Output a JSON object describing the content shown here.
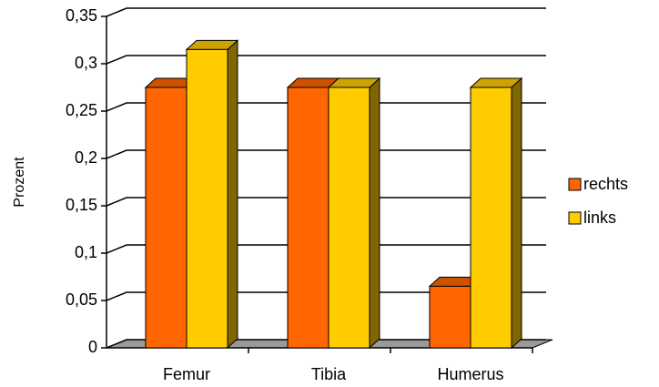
{
  "chart_data": {
    "type": "bar3d",
    "y_label": "Prozent",
    "categories": [
      "Femur",
      "Tibia",
      "Humerus"
    ],
    "series": [
      {
        "name": "rechts",
        "color": "#ff6600",
        "values": [
          0.275,
          0.275,
          0.065
        ]
      },
      {
        "name": "links",
        "color": "#ffcc00",
        "values": [
          0.315,
          0.275,
          0.275
        ]
      }
    ],
    "ylim": [
      0,
      0.35
    ],
    "yticks": [
      0,
      {
        "value": 0.05,
        "label": "0,05"
      },
      {
        "value": 0.1,
        "label": "0,1"
      },
      {
        "value": 0.15,
        "label": "0,15"
      },
      {
        "value": 0.2,
        "label": "0,2"
      },
      {
        "value": 0.25,
        "label": "0,25"
      },
      {
        "value": 0.3,
        "label": "0,3"
      },
      {
        "value": 0.35,
        "label": "0,35"
      }
    ],
    "grid": true,
    "legend": "right"
  }
}
